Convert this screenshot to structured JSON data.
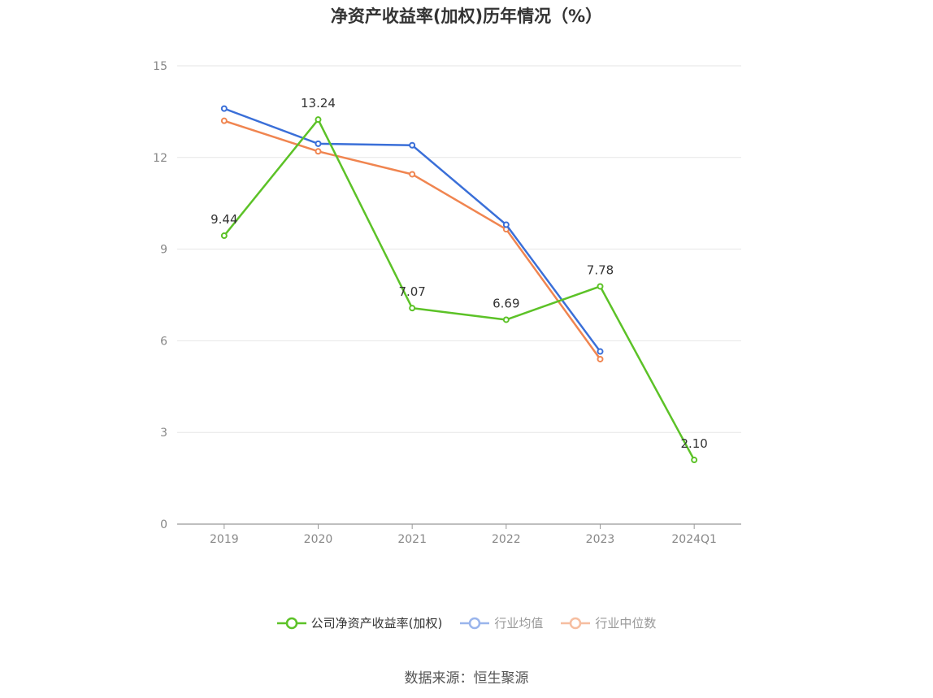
{
  "chart_data": {
    "type": "line",
    "title": "净资产收益率(加权)历年情况（%）",
    "categories": [
      "2019",
      "2020",
      "2021",
      "2022",
      "2023",
      "2024Q1"
    ],
    "yticks": [
      "0",
      "3",
      "6",
      "9",
      "12",
      "15"
    ],
    "ylim": [
      0,
      15
    ],
    "grid": true,
    "legend_position": "bottom",
    "series": [
      {
        "name": "公司净资产收益率(加权)",
        "color": "#5cc227",
        "values": [
          9.44,
          13.24,
          7.07,
          6.69,
          7.78,
          2.1
        ],
        "labels": [
          "9.44",
          "13.24",
          "7.07",
          "6.69",
          "7.78",
          "2.10"
        ]
      },
      {
        "name": "行业均值",
        "color": "#3a6fd8",
        "values": [
          13.6,
          12.45,
          12.4,
          9.8,
          5.65,
          null
        ]
      },
      {
        "name": "行业中位数",
        "color": "#f08550",
        "values": [
          13.2,
          12.2,
          11.45,
          9.65,
          5.4,
          null
        ]
      }
    ],
    "source": "数据来源：恒生聚源"
  }
}
